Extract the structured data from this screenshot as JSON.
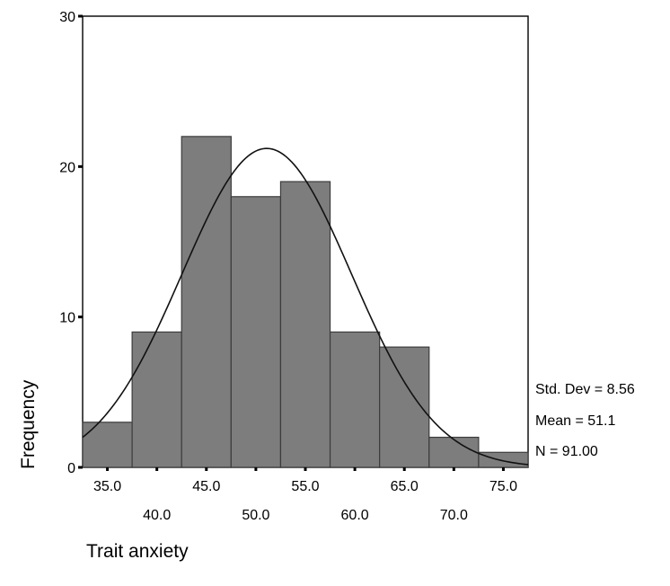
{
  "chart_data": {
    "type": "bar",
    "title": "",
    "xlabel": "Trait anxiety",
    "ylabel": "Frequency",
    "ylim": [
      0,
      30
    ],
    "yticks": [
      "0",
      "10",
      "20",
      "30"
    ],
    "categories": [
      "35.0",
      "40.0",
      "45.0",
      "50.0",
      "55.0",
      "60.0",
      "65.0",
      "70.0",
      "75.0"
    ],
    "values": [
      3,
      9,
      22,
      18,
      19,
      9,
      8,
      2,
      1
    ],
    "xlim": [
      32.5,
      77.5
    ],
    "bin_width": 5,
    "grid": false,
    "normal_curve": {
      "mean": 51.1,
      "std_dev": 8.56,
      "n": 91
    },
    "stats": [
      "Std. Dev = 8.56",
      "Mean = 51.1",
      "N = 91.00"
    ]
  }
}
